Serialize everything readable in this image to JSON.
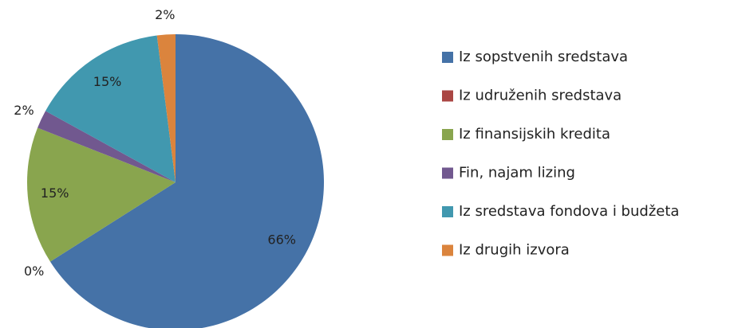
{
  "chart_data": {
    "type": "pie",
    "categories": [
      "Iz sopstvenih sredstava",
      "Iz udruženih sredstava",
      "Iz finansijskih kredita",
      "Fin, najam lizing",
      "Iz sredstava fondova i budžeta",
      "Iz drugih izvora"
    ],
    "values": [
      66,
      0,
      15,
      2,
      15,
      2
    ],
    "value_labels": [
      "66%",
      "0%",
      "15%",
      "2%",
      "15%",
      "2%"
    ],
    "colors": [
      "#4572a7",
      "#aa4643",
      "#89a54e",
      "#71588f",
      "#4198af",
      "#db843d"
    ],
    "legend": "right"
  }
}
